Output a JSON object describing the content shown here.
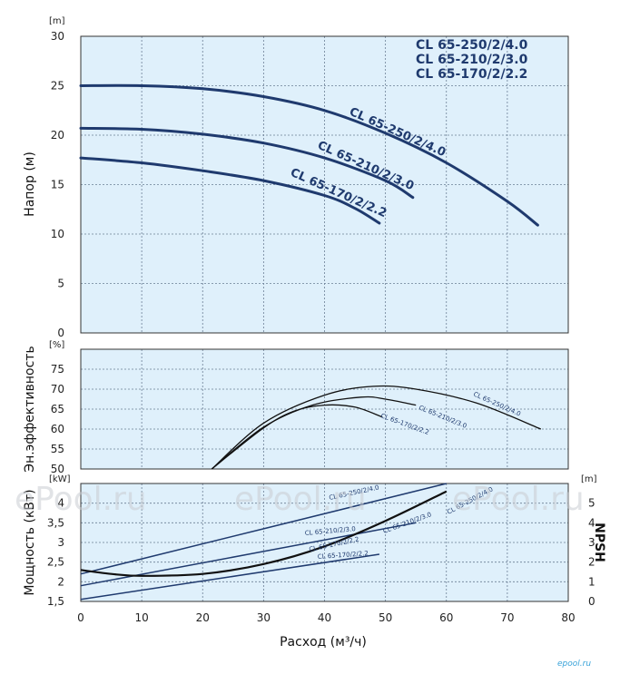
{
  "chart_data": [
    {
      "type": "line",
      "ylabel": "Напор (м)",
      "yunit": "[m]",
      "xlim": [
        0,
        80
      ],
      "ylim": [
        0,
        30
      ],
      "yticks": [
        0,
        5,
        10,
        15,
        20,
        25,
        30
      ],
      "grid": true,
      "legend": [
        "CL 65-250/2/4.0",
        "CL 65-210/2/3.0",
        "CL 65-170/2/2.2"
      ],
      "legend_position": "top-right",
      "series": [
        {
          "name": "CL 65-250/2/4.0",
          "x": [
            0,
            10,
            20,
            30,
            40,
            50,
            60,
            70,
            75
          ],
          "y": [
            25.0,
            25.0,
            24.7,
            23.9,
            22.5,
            20.2,
            17.2,
            13.3,
            10.9
          ]
        },
        {
          "name": "CL 65-210/2/3.0",
          "x": [
            0,
            10,
            20,
            30,
            40,
            50,
            54.5
          ],
          "y": [
            20.7,
            20.6,
            20.1,
            19.2,
            17.7,
            15.4,
            13.7
          ]
        },
        {
          "name": "CL 65-170/2/2.2",
          "x": [
            0,
            10,
            20,
            30,
            40,
            45,
            49
          ],
          "y": [
            17.7,
            17.2,
            16.4,
            15.4,
            13.9,
            12.6,
            11.1
          ]
        }
      ]
    },
    {
      "type": "line",
      "ylabel": "Эн.эффективность",
      "yunit": "[%]",
      "xlim": [
        0,
        80
      ],
      "ylim": [
        50,
        80
      ],
      "yticks": [
        50,
        55,
        60,
        65,
        70,
        75
      ],
      "grid": true,
      "series": [
        {
          "name": "CL 65-250/2/4.0",
          "x": [
            21.5,
            30,
            40,
            48,
            55,
            65,
            75.5
          ],
          "y": [
            50,
            61.5,
            68.5,
            70.7,
            70.0,
            66.5,
            60.0
          ]
        },
        {
          "name": "CL 65-210/2/3.0",
          "x": [
            21.5,
            30,
            38,
            46,
            50,
            55
          ],
          "y": [
            50,
            60.5,
            66.0,
            68.0,
            67.5,
            66.0
          ]
        },
        {
          "name": "CL 65-170/2/2.2",
          "x": [
            21.5,
            30,
            35,
            40,
            45,
            49.5
          ],
          "y": [
            50,
            60.3,
            64.5,
            66.0,
            65.5,
            63.0
          ]
        }
      ]
    },
    {
      "type": "line",
      "ylabel": "Мощность (кВт)",
      "yunit": "[kW]",
      "y2label": "NPSH",
      "y2unit": "[m]",
      "xlabel": "Расход (м³/ч)",
      "xlim": [
        0,
        80
      ],
      "xticks": [
        0,
        10,
        20,
        30,
        40,
        50,
        60,
        70,
        80
      ],
      "ylim": [
        1.5,
        4.5
      ],
      "yticks": [
        1.5,
        2,
        2.5,
        3,
        3.5,
        4
      ],
      "y2lim": [
        0,
        6
      ],
      "y2ticks": [
        0,
        1,
        2,
        3,
        4,
        5
      ],
      "grid": true,
      "series": [
        {
          "name": "CL 65-250/2/4.0",
          "x": [
            0,
            60
          ],
          "y": [
            2.2,
            4.5
          ]
        },
        {
          "name": "CL 65-210/2/3.0",
          "x": [
            0,
            55
          ],
          "y": [
            1.9,
            3.5
          ]
        },
        {
          "name": "CL 65-170/2/2.2",
          "x": [
            0,
            49
          ],
          "y": [
            1.55,
            2.7
          ]
        },
        {
          "name": "NPSH",
          "axis": "y2",
          "x": [
            0,
            5,
            10,
            20,
            30,
            40,
            50,
            60
          ],
          "y": [
            1.6,
            1.4,
            1.3,
            1.4,
            1.9,
            2.8,
            4.1,
            5.6
          ]
        }
      ]
    }
  ],
  "series_labels": {
    "head": [
      "CL 65-250/2/4.0",
      "CL 65-210/2/3.0",
      "CL 65-170/2/2.2"
    ],
    "efficiency": [
      "CL 65-250/2/4.0",
      "CL 65-210/2/3.0",
      "CL 65-170/2/2.2"
    ],
    "power": [
      "CL 65-250/2/4.0",
      "CL 65-210/2/3.0",
      "CL 65-170/2/2.2"
    ],
    "npsh": [
      "CL 65-250/2/4.0",
      "CL 65-210/2/3.0",
      "CL 65-170/2/2.2"
    ]
  },
  "watermark": "ePool.ru",
  "watermark_logo": "epool.ru",
  "colors": {
    "plot_bg": "#dff0fb",
    "curve": "#1f3a6e",
    "eff_curve": "#111111",
    "grid": "#6b7f95"
  }
}
